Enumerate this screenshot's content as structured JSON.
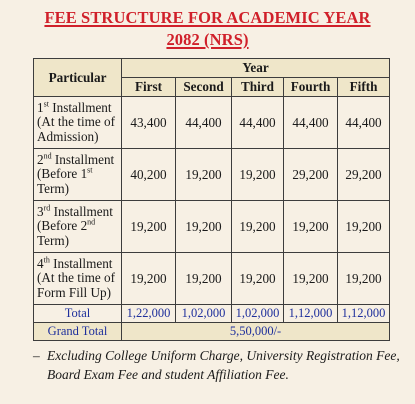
{
  "title": {
    "line1": "FEE STRUCTURE FOR ACADEMIC YEAR",
    "line2": "2082 (NRS)"
  },
  "table": {
    "particular_header": "Particular",
    "year_header": "Year",
    "years": [
      "First",
      "Second",
      "Third",
      "Fourth",
      "Fifth"
    ],
    "installments": [
      {
        "ord_num": "1",
        "ord_suffix": "st",
        "title": " Installment",
        "line2": "(At the time of",
        "line3": "Admission)",
        "sup_ref": "",
        "values": [
          "43,400",
          "44,400",
          "44,400",
          "44,400",
          "44,400"
        ]
      },
      {
        "ord_num": "2",
        "ord_suffix": "nd",
        "title": " Installment",
        "line2": "(Before 1",
        "line2_sup": "st",
        "line3": "Term)",
        "values": [
          "40,200",
          "19,200",
          "19,200",
          "29,200",
          "29,200"
        ]
      },
      {
        "ord_num": "3",
        "ord_suffix": "rd",
        "title": " Installment",
        "line2": "(Before 2",
        "line2_sup": "nd",
        "line3": "Term)",
        "values": [
          "19,200",
          "19,200",
          "19,200",
          "19,200",
          "19,200"
        ]
      },
      {
        "ord_num": "4",
        "ord_suffix": "th",
        "title": " Installment",
        "line2": "(At the time of",
        "line3": "Form Fill Up)",
        "values": [
          "19,200",
          "19,200",
          "19,200",
          "19,200",
          "19,200"
        ]
      }
    ],
    "total": {
      "label": "Total",
      "values": [
        "1,22,000",
        "1,02,000",
        "1,02,000",
        "1,12,000",
        "1,12,000"
      ]
    },
    "grand_total": {
      "label": "Grand Total",
      "value": "5,50,000/-"
    }
  },
  "note": {
    "dash": "–",
    "text": "Excluding College Uniform Charge, University Registration Fee, Board Exam Fee and student Affiliation Fee."
  },
  "colors": {
    "title": "#d0202a",
    "totals": "#1e2f9c",
    "header_bg": "#efe6c9",
    "page_bg": "#f7f0e4"
  }
}
